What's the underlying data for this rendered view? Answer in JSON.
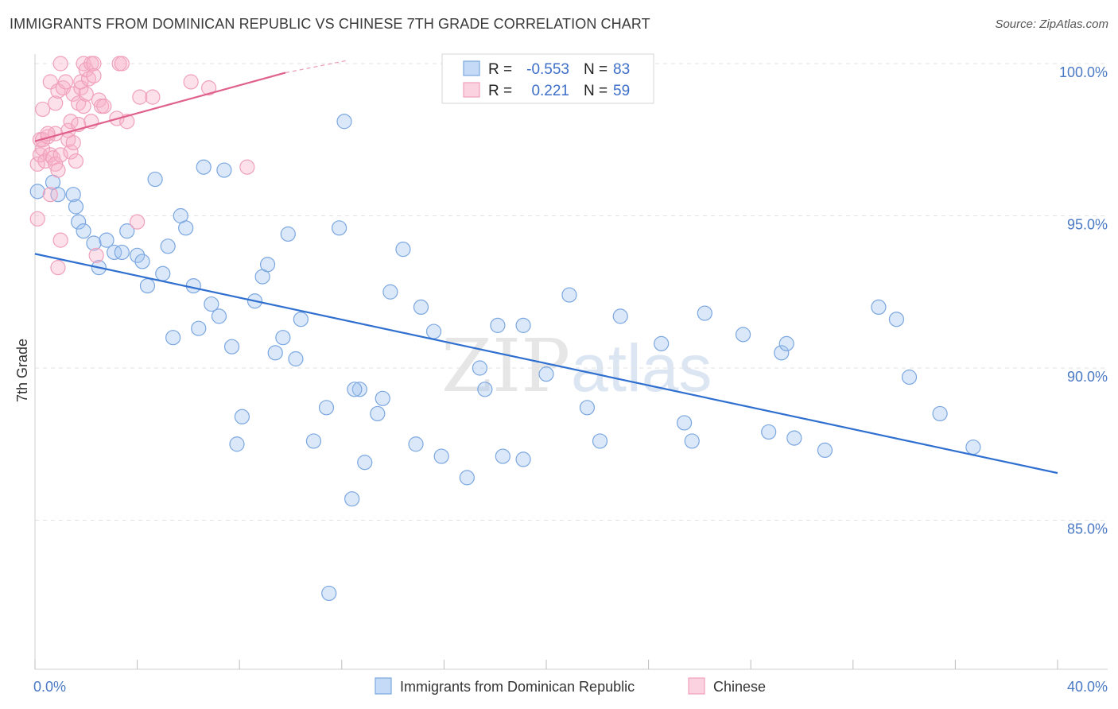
{
  "title": "IMMIGRANTS FROM DOMINICAN REPUBLIC VS CHINESE 7TH GRADE CORRELATION CHART",
  "source": "Source: ZipAtlas.com",
  "watermark": {
    "zip": "ZIP",
    "atlas": "atlas"
  },
  "chart_data": {
    "type": "scatter",
    "title": "IMMIGRANTS FROM DOMINICAN REPUBLIC VS CHINESE 7TH GRADE CORRELATION CHART",
    "ylabel": "7th Grade",
    "xlabel": "",
    "xlim": [
      0,
      40
    ],
    "ylim": [
      80,
      101
    ],
    "x_tick_labels": [
      "0.0%",
      "40.0%"
    ],
    "y_ticks": [
      85,
      90,
      95,
      100
    ],
    "y_tick_labels": [
      "85.0%",
      "90.0%",
      "95.0%",
      "100.0%"
    ],
    "grid": "horizontal dashed",
    "legend_position": "bottom",
    "stats": [
      {
        "r_label": "R =",
        "r": "-0.553",
        "n_label": "N =",
        "n": "83"
      },
      {
        "r_label": "R =",
        "r": "0.221",
        "n_label": "N =",
        "n": "59"
      }
    ],
    "series": [
      {
        "name": "Immigrants from Dominican Republic",
        "color": "#7ba7e0",
        "line_color": "#2f6fd0",
        "trend": {
          "x": [
            0,
            40
          ],
          "y": [
            93.75,
            86.55
          ]
        },
        "points": [
          [
            0.1,
            95.8
          ],
          [
            0.7,
            96.1
          ],
          [
            0.9,
            95.7
          ],
          [
            1.5,
            95.7
          ],
          [
            1.6,
            95.3
          ],
          [
            1.7,
            94.8
          ],
          [
            1.9,
            94.5
          ],
          [
            2.3,
            94.1
          ],
          [
            2.5,
            93.3
          ],
          [
            2.8,
            94.2
          ],
          [
            3.1,
            93.8
          ],
          [
            3.4,
            93.8
          ],
          [
            3.6,
            94.5
          ],
          [
            4.0,
            93.7
          ],
          [
            4.2,
            93.5
          ],
          [
            4.4,
            92.7
          ],
          [
            4.7,
            96.2
          ],
          [
            5.0,
            93.1
          ],
          [
            5.2,
            94.0
          ],
          [
            5.4,
            91.0
          ],
          [
            5.7,
            95.0
          ],
          [
            5.9,
            94.6
          ],
          [
            6.2,
            92.7
          ],
          [
            6.4,
            91.3
          ],
          [
            6.6,
            96.6
          ],
          [
            6.9,
            92.1
          ],
          [
            7.2,
            91.7
          ],
          [
            7.4,
            96.5
          ],
          [
            7.7,
            90.7
          ],
          [
            8.1,
            88.4
          ],
          [
            7.9,
            87.5
          ],
          [
            8.6,
            92.2
          ],
          [
            8.9,
            93.0
          ],
          [
            9.1,
            93.4
          ],
          [
            9.4,
            90.5
          ],
          [
            9.7,
            91.0
          ],
          [
            9.9,
            94.4
          ],
          [
            10.2,
            90.3
          ],
          [
            10.4,
            91.6
          ],
          [
            10.9,
            87.6
          ],
          [
            11.4,
            88.7
          ],
          [
            11.9,
            94.6
          ],
          [
            11.5,
            82.6
          ],
          [
            12.1,
            98.1
          ],
          [
            12.4,
            85.7
          ],
          [
            12.7,
            89.3
          ],
          [
            12.9,
            86.9
          ],
          [
            13.4,
            88.5
          ],
          [
            13.6,
            89.0
          ],
          [
            13.9,
            92.5
          ],
          [
            14.4,
            93.9
          ],
          [
            14.9,
            87.5
          ],
          [
            15.1,
            92.0
          ],
          [
            15.6,
            91.2
          ],
          [
            15.9,
            87.1
          ],
          [
            16.9,
            86.4
          ],
          [
            17.4,
            90.0
          ],
          [
            17.6,
            89.3
          ],
          [
            18.1,
            91.4
          ],
          [
            18.3,
            87.1
          ],
          [
            19.1,
            87.0
          ],
          [
            19.1,
            91.4
          ],
          [
            20.0,
            89.8
          ],
          [
            20.9,
            92.4
          ],
          [
            21.6,
            88.7
          ],
          [
            22.1,
            87.6
          ],
          [
            22.9,
            91.7
          ],
          [
            24.5,
            90.8
          ],
          [
            25.4,
            88.2
          ],
          [
            25.7,
            87.6
          ],
          [
            26.2,
            91.8
          ],
          [
            27.7,
            91.1
          ],
          [
            28.7,
            87.9
          ],
          [
            29.2,
            90.5
          ],
          [
            29.4,
            90.8
          ],
          [
            29.7,
            87.7
          ],
          [
            30.9,
            87.3
          ],
          [
            33.0,
            92.0
          ],
          [
            33.7,
            91.6
          ],
          [
            34.2,
            89.7
          ],
          [
            35.4,
            88.5
          ],
          [
            36.7,
            87.4
          ],
          [
            12.5,
            89.3
          ]
        ]
      },
      {
        "name": "Chinese",
        "color": "#f0a0bb",
        "line_color": "#e0608c",
        "trend": {
          "x": [
            0,
            9.8
          ],
          "y": [
            97.45,
            99.7
          ]
        },
        "trend_dashed": {
          "x": [
            9.8,
            12.2
          ],
          "y": [
            99.7,
            100.1
          ]
        },
        "points": [
          [
            0.1,
            96.7
          ],
          [
            0.2,
            97.0
          ],
          [
            0.2,
            97.5
          ],
          [
            0.3,
            97.2
          ],
          [
            0.3,
            98.5
          ],
          [
            0.4,
            96.8
          ],
          [
            0.5,
            97.6
          ],
          [
            0.6,
            97.0
          ],
          [
            0.6,
            95.7
          ],
          [
            0.6,
            99.4
          ],
          [
            0.7,
            96.9
          ],
          [
            0.8,
            98.7
          ],
          [
            0.8,
            97.7
          ],
          [
            0.8,
            96.7
          ],
          [
            0.9,
            99.1
          ],
          [
            0.9,
            96.5
          ],
          [
            0.9,
            93.3
          ],
          [
            1.0,
            97.0
          ],
          [
            1.0,
            94.2
          ],
          [
            1.0,
            100.0
          ],
          [
            1.1,
            99.2
          ],
          [
            1.2,
            99.4
          ],
          [
            1.3,
            97.8
          ],
          [
            1.3,
            97.5
          ],
          [
            1.4,
            97.1
          ],
          [
            1.4,
            98.1
          ],
          [
            1.5,
            99.0
          ],
          [
            1.5,
            97.4
          ],
          [
            1.7,
            98.0
          ],
          [
            1.7,
            98.7
          ],
          [
            1.8,
            99.2
          ],
          [
            1.8,
            99.4
          ],
          [
            1.9,
            98.6
          ],
          [
            1.9,
            100.0
          ],
          [
            2.0,
            99.8
          ],
          [
            2.1,
            99.5
          ],
          [
            2.2,
            100.0
          ],
          [
            2.2,
            98.1
          ],
          [
            2.3,
            100.0
          ],
          [
            2.3,
            99.6
          ],
          [
            2.4,
            93.7
          ],
          [
            2.5,
            98.8
          ],
          [
            2.6,
            98.6
          ],
          [
            2.7,
            98.6
          ],
          [
            3.2,
            98.2
          ],
          [
            3.3,
            100.0
          ],
          [
            3.4,
            100.0
          ],
          [
            3.6,
            98.1
          ],
          [
            4.0,
            94.8
          ],
          [
            4.1,
            98.9
          ],
          [
            4.6,
            98.9
          ],
          [
            6.1,
            99.4
          ],
          [
            6.8,
            99.2
          ],
          [
            8.3,
            96.6
          ],
          [
            0.3,
            97.5
          ],
          [
            0.1,
            94.9
          ],
          [
            1.6,
            96.8
          ],
          [
            2.0,
            99.0
          ],
          [
            0.5,
            97.7
          ]
        ]
      }
    ]
  }
}
